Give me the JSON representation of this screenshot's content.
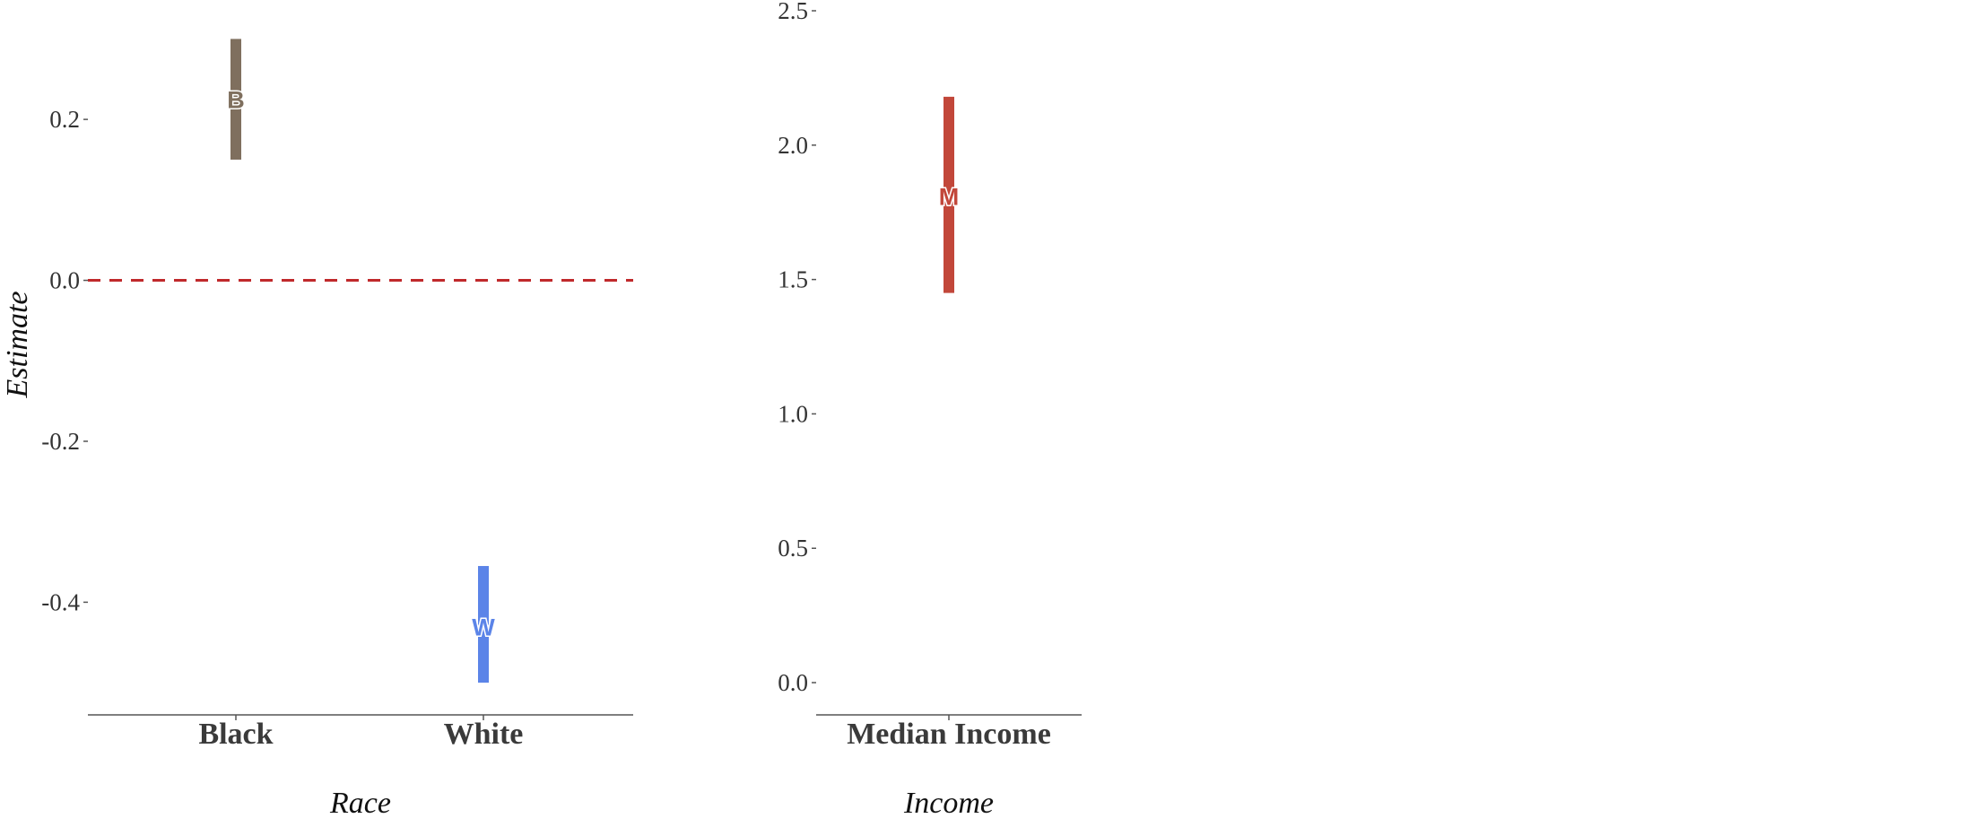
{
  "chart_data": [
    {
      "type": "errorbar",
      "panel": "race",
      "ylabel": "Estimate",
      "xlabel": "Race",
      "categories": [
        "Black",
        "White"
      ],
      "ylim": [
        -0.54,
        0.335
      ],
      "yticks": [
        0.2,
        0.0,
        -0.2,
        -0.4
      ],
      "ytick_labels": [
        "0.2",
        "0.0",
        "-0.2",
        "-0.4"
      ],
      "reference_line": 0.0,
      "reference_line_color": "#c0292b",
      "series": [
        {
          "category": "Black",
          "letter": "B",
          "estimate": 0.225,
          "low": 0.15,
          "high": 0.3,
          "color": "#7f6f5e"
        },
        {
          "category": "White",
          "letter": "W",
          "estimate": -0.43,
          "low": -0.5,
          "high": -0.355,
          "color": "#5b84e8"
        }
      ],
      "grid": false
    },
    {
      "type": "errorbar",
      "panel": "income",
      "ylabel": "",
      "xlabel": "Income",
      "categories": [
        "Median Income"
      ],
      "ylim": [
        -0.12,
        2.5
      ],
      "yticks": [
        2.5,
        2.0,
        1.5,
        1.0,
        0.5,
        0.0
      ],
      "ytick_labels": [
        "2.5",
        "2.0",
        "1.5",
        "1.0",
        "0.5",
        "0.0"
      ],
      "series": [
        {
          "category": "Median Income",
          "letter": "M",
          "estimate": 1.81,
          "low": 1.45,
          "high": 2.18,
          "color": "#c2473a"
        }
      ],
      "grid": false
    }
  ]
}
